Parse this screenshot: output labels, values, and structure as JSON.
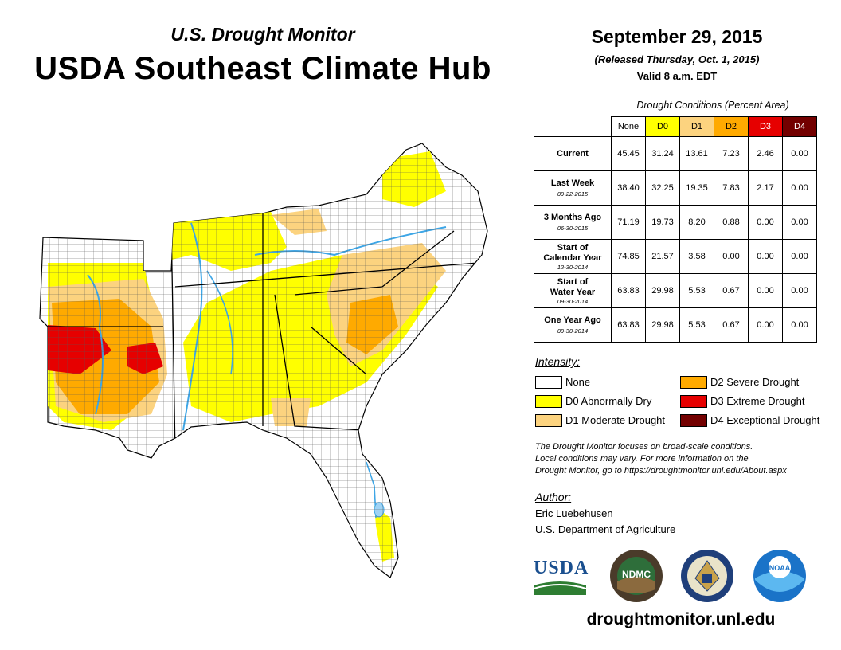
{
  "header": {
    "subtitle": "U.S. Drought Monitor",
    "title": "USDA Southeast Climate Hub",
    "date": "September 29, 2015",
    "released": "(Released Thursday, Oct. 1, 2015)",
    "valid": "Valid 8 a.m. EDT"
  },
  "table": {
    "caption": "Drought Conditions (Percent Area)",
    "columns": [
      "None",
      "D0",
      "D1",
      "D2",
      "D3",
      "D4"
    ],
    "rows": [
      {
        "label": "Current",
        "label2": "",
        "date": "",
        "values": [
          "45.45",
          "31.24",
          "13.61",
          "7.23",
          "2.46",
          "0.00"
        ]
      },
      {
        "label": "Last Week",
        "label2": "",
        "date": "09-22-2015",
        "values": [
          "38.40",
          "32.25",
          "19.35",
          "7.83",
          "2.17",
          "0.00"
        ]
      },
      {
        "label": "3 Months Ago",
        "label2": "",
        "date": "06-30-2015",
        "values": [
          "71.19",
          "19.73",
          "8.20",
          "0.88",
          "0.00",
          "0.00"
        ]
      },
      {
        "label": "Start of",
        "label2": "Calendar Year",
        "date": "12-30-2014",
        "values": [
          "74.85",
          "21.57",
          "3.58",
          "0.00",
          "0.00",
          "0.00"
        ]
      },
      {
        "label": "Start of",
        "label2": "Water Year",
        "date": "09-30-2014",
        "values": [
          "63.83",
          "29.98",
          "5.53",
          "0.67",
          "0.00",
          "0.00"
        ]
      },
      {
        "label": "One Year Ago",
        "label2": "",
        "date": "09-30-2014",
        "values": [
          "63.83",
          "29.98",
          "5.53",
          "0.67",
          "0.00",
          "0.00"
        ]
      }
    ]
  },
  "legend": {
    "heading": "Intensity:",
    "items": [
      {
        "label": "None",
        "color": "#ffffff"
      },
      {
        "label": "D0 Abnormally Dry",
        "color": "#ffff00"
      },
      {
        "label": "D1 Moderate Drought",
        "color": "#fcd37f"
      },
      {
        "label": "D2 Severe Drought",
        "color": "#ffaa00"
      },
      {
        "label": "D3 Extreme Drought",
        "color": "#e60000"
      },
      {
        "label": "D4 Exceptional Drought",
        "color": "#730000"
      }
    ]
  },
  "note": {
    "line1": "The Drought Monitor focuses on broad-scale conditions.",
    "line2": "Local conditions may vary. For more information on the",
    "line3": "Drought Monitor, go to https://droughtmonitor.unl.edu/About.aspx"
  },
  "author": {
    "heading": "Author:",
    "name": "Eric Luebehusen",
    "org": "U.S. Department of Agriculture"
  },
  "logos": {
    "usda": "USDA",
    "ndmc": "NDMC",
    "noaa": "NOAA"
  },
  "url": "droughtmonitor.unl.edu",
  "colors": {
    "none": "#ffffff",
    "d0": "#ffff00",
    "d1": "#fcd37f",
    "d2": "#ffaa00",
    "d3": "#e60000",
    "d4": "#730000",
    "water": "#3ea6e6",
    "usda_blue": "#1a4f8f",
    "usda_green": "#2e7d32",
    "noaa_blue": "#1a73c8"
  }
}
